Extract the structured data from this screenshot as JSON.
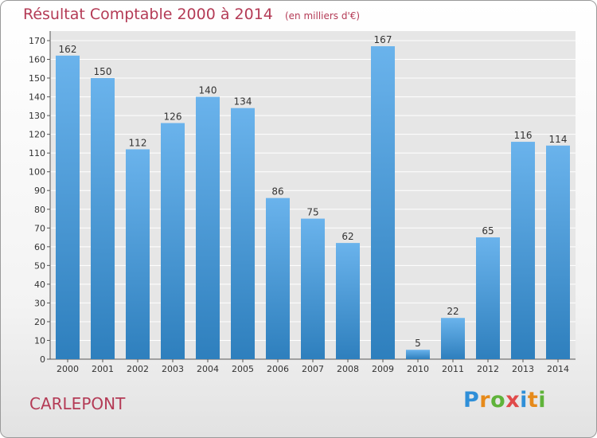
{
  "title": "Résultat Comptable 2000 à 2014",
  "unit": "(en milliers d'€)",
  "place": "CARLEPONT",
  "brand": {
    "letters": [
      "P",
      "r",
      "o",
      "x",
      "i",
      "t",
      "i"
    ],
    "colors": [
      "#2f8fd8",
      "#e68a1a",
      "#5fb33a",
      "#e04a4a",
      "#2f8fd8",
      "#e68a1a",
      "#5fb33a"
    ]
  },
  "colors": {
    "title": "#b43b56",
    "bar_light": "#6ab3ec",
    "bar_dark": "#2e7fbd",
    "plot_bg": "#e6e6e6"
  },
  "chart_data": {
    "type": "bar",
    "categories": [
      "2000",
      "2001",
      "2002",
      "2003",
      "2004",
      "2005",
      "2006",
      "2007",
      "2008",
      "2009",
      "2010",
      "2011",
      "2012",
      "2013",
      "2014"
    ],
    "values": [
      162,
      150,
      112,
      126,
      140,
      134,
      86,
      75,
      62,
      167,
      5,
      22,
      65,
      116,
      114
    ],
    "ylim": [
      0,
      170
    ],
    "yticks": [
      0,
      10,
      20,
      30,
      40,
      50,
      60,
      70,
      80,
      90,
      100,
      110,
      120,
      130,
      140,
      150,
      160,
      170
    ],
    "grid": true,
    "data_labels": true
  }
}
